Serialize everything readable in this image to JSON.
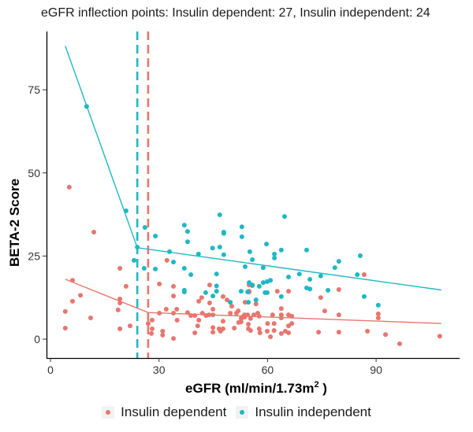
{
  "chart_data": {
    "type": "scatter",
    "title": "eGFR inflection points: Insulin dependent: 27, Insulin independent: 24",
    "xlabel": "eGFR (ml/min/1.73m",
    "xlabel_sup": "2",
    "xlabel_tail": " )",
    "ylabel": "BETA-2 Score",
    "xlim": [
      -1,
      113
    ],
    "ylim": [
      -5.5,
      96
    ],
    "xticks": [
      0,
      30,
      60,
      90
    ],
    "yticks": [
      0,
      25,
      50,
      75
    ],
    "grid": false,
    "legend_position": "bottom",
    "series": [
      {
        "name": "Insulin dependent",
        "color": "#E7766E",
        "inflection": 27,
        "segmented_fit": [
          [
            4.1,
            18.0
          ],
          [
            27,
            8.0
          ],
          [
            108,
            4.7
          ]
        ],
        "points": [
          [
            5.2,
            45.7
          ],
          [
            12.0,
            32.2
          ],
          [
            32.2,
            23.7
          ],
          [
            19.2,
            21.3
          ],
          [
            6.1,
            17.7
          ],
          [
            20.9,
            15.9
          ],
          [
            30.1,
            16.6
          ],
          [
            8.3,
            13.2
          ],
          [
            6.1,
            11.4
          ],
          [
            19.2,
            12.1
          ],
          [
            19.2,
            10.9
          ],
          [
            32.0,
            9.0
          ],
          [
            18.7,
            8.8
          ],
          [
            4.1,
            8.3
          ],
          [
            11.1,
            6.4
          ],
          [
            22.0,
            4.0
          ],
          [
            27.0,
            4.7
          ],
          [
            28.1,
            5.7
          ],
          [
            4.1,
            3.3
          ],
          [
            19.2,
            3.1
          ],
          [
            27.9,
            1.7
          ],
          [
            31.0,
            2.4
          ],
          [
            31.0,
            1.2
          ],
          [
            28.1,
            3.1
          ],
          [
            34.0,
            15.9
          ],
          [
            34.0,
            13.0
          ],
          [
            44.0,
            16.3
          ],
          [
            55.8,
            16.1
          ],
          [
            54.9,
            14.4
          ],
          [
            86.7,
            19.4
          ],
          [
            62.7,
            14.4
          ],
          [
            65.8,
            14.4
          ],
          [
            79.7,
            14.9
          ],
          [
            74.7,
            12.5
          ],
          [
            75.8,
            8.5
          ],
          [
            79.7,
            7.3
          ],
          [
            90.6,
            7.6
          ],
          [
            90.6,
            6.4
          ],
          [
            74.1,
            2.1
          ],
          [
            79.7,
            2.1
          ],
          [
            87.6,
            2.4
          ],
          [
            92.6,
            1.4
          ],
          [
            96.5,
            -1.4
          ],
          [
            107.6,
            0.9
          ],
          [
            41.0,
            11.4
          ],
          [
            41.8,
            12.5
          ],
          [
            44.0,
            10.9
          ],
          [
            44.9,
            9.0
          ],
          [
            47.7,
            12.8
          ],
          [
            48.8,
            11.8
          ],
          [
            34.9,
            9.0
          ],
          [
            30.1,
            7.8
          ],
          [
            34.0,
            7.8
          ],
          [
            37.9,
            8.0
          ],
          [
            38.8,
            7.1
          ],
          [
            39.9,
            7.1
          ],
          [
            42.0,
            7.8
          ],
          [
            43.0,
            7.1
          ],
          [
            44.9,
            7.3
          ],
          [
            43.8,
            7.3
          ],
          [
            49.7,
            7.8
          ],
          [
            51.4,
            7.8
          ],
          [
            50.1,
            9.9
          ],
          [
            52.9,
            6.6
          ],
          [
            53.6,
            6.6
          ],
          [
            35.0,
            5.7
          ],
          [
            41.0,
            5.7
          ],
          [
            47.7,
            5.4
          ],
          [
            40.7,
            4.0
          ],
          [
            52.7,
            5.2
          ],
          [
            44.9,
            3.5
          ],
          [
            44.9,
            2.1
          ],
          [
            46.6,
            3.1
          ],
          [
            47.0,
            2.4
          ],
          [
            47.7,
            3.1
          ],
          [
            50.8,
            3.3
          ],
          [
            39.9,
            1.9
          ],
          [
            34.0,
            0.2
          ],
          [
            54.9,
            16.3
          ],
          [
            54.9,
            14.2
          ],
          [
            53.8,
            11.1
          ],
          [
            56.8,
            10.6
          ],
          [
            63.8,
            9.2
          ],
          [
            51.9,
            8.5
          ],
          [
            53.6,
            7.3
          ],
          [
            54.5,
            7.3
          ],
          [
            56.2,
            7.3
          ],
          [
            57.3,
            7.8
          ],
          [
            57.7,
            6.9
          ],
          [
            61.4,
            7.3
          ],
          [
            63.8,
            7.3
          ],
          [
            65.8,
            7.3
          ],
          [
            66.7,
            6.9
          ],
          [
            63.8,
            6.4
          ],
          [
            52.7,
            6.2
          ],
          [
            55.3,
            6.2
          ],
          [
            52.0,
            5.0
          ],
          [
            60.0,
            4.7
          ],
          [
            61.8,
            4.7
          ],
          [
            65.8,
            4.0
          ],
          [
            66.7,
            4.7
          ],
          [
            54.7,
            4.5
          ],
          [
            54.7,
            3.1
          ],
          [
            55.3,
            2.6
          ],
          [
            57.7,
            3.1
          ],
          [
            57.9,
            1.9
          ],
          [
            61.8,
            2.6
          ],
          [
            64.9,
            2.4
          ],
          [
            65.8,
            1.9
          ],
          [
            59.9,
            2.4
          ],
          [
            63.8,
            1.7
          ],
          [
            60.8,
            0.7
          ]
        ]
      },
      {
        "name": "Insulin independent",
        "color": "#1FB8C3",
        "inflection": 24,
        "segmented_fit": [
          [
            4.1,
            88.2
          ],
          [
            24,
            27.5
          ],
          [
            108,
            14.8
          ]
        ],
        "points": [
          [
            10.0,
            70.0
          ],
          [
            20.9,
            38.6
          ],
          [
            26.1,
            33.6
          ],
          [
            29.0,
            31.0
          ],
          [
            24.0,
            27.7
          ],
          [
            32.9,
            26.3
          ],
          [
            23.1,
            23.7
          ],
          [
            25.9,
            21.3
          ],
          [
            29.0,
            21.1
          ],
          [
            46.8,
            37.4
          ],
          [
            37.0,
            34.3
          ],
          [
            37.9,
            32.4
          ],
          [
            47.9,
            32.2
          ],
          [
            47.9,
            31.8
          ],
          [
            37.9,
            29.3
          ],
          [
            52.9,
            33.8
          ],
          [
            52.9,
            30.8
          ],
          [
            44.8,
            27.4
          ],
          [
            46.8,
            27.7
          ],
          [
            40.9,
            25.6
          ],
          [
            47.9,
            25.4
          ],
          [
            59.7,
            28.6
          ],
          [
            55.1,
            26.3
          ],
          [
            55.8,
            23.9
          ],
          [
            34.0,
            23.2
          ],
          [
            53.8,
            21.8
          ],
          [
            58.8,
            21.5
          ],
          [
            37.0,
            21.3
          ],
          [
            38.8,
            19.4
          ],
          [
            45.9,
            19.6
          ],
          [
            54.9,
            17.0
          ],
          [
            45.9,
            16.0
          ],
          [
            58.8,
            17.0
          ],
          [
            37.0,
            14.7
          ],
          [
            37.0,
            14.2
          ],
          [
            42.9,
            14.0
          ],
          [
            45.9,
            14.4
          ],
          [
            52.7,
            14.4
          ],
          [
            57.7,
            15.9
          ],
          [
            64.7,
            36.9
          ],
          [
            63.8,
            26.8
          ],
          [
            61.9,
            25.6
          ],
          [
            61.9,
            24.4
          ],
          [
            70.8,
            26.8
          ],
          [
            85.6,
            25.1
          ],
          [
            79.7,
            23.4
          ],
          [
            78.6,
            21.5
          ],
          [
            65.8,
            18.7
          ],
          [
            68.8,
            19.6
          ],
          [
            71.7,
            18.0
          ],
          [
            84.8,
            19.4
          ],
          [
            59.9,
            17.3
          ],
          [
            60.8,
            17.7
          ],
          [
            70.8,
            15.4
          ],
          [
            71.7,
            15.1
          ],
          [
            76.7,
            14.7
          ],
          [
            59.9,
            14.0
          ],
          [
            74.7,
            19.0
          ],
          [
            86.7,
            12.8
          ],
          [
            90.6,
            10.2
          ],
          [
            55.8,
            16.3
          ],
          [
            54.5,
            14.2
          ],
          [
            59.3,
            14.0
          ],
          [
            63.8,
            12.8
          ],
          [
            54.7,
            11.1
          ],
          [
            56.8,
            11.8
          ],
          [
            44.9,
            13.0
          ],
          [
            49.7,
            11.1
          ]
        ]
      }
    ]
  },
  "legend": {
    "items": [
      "Insulin dependent",
      "Insulin independent"
    ]
  }
}
